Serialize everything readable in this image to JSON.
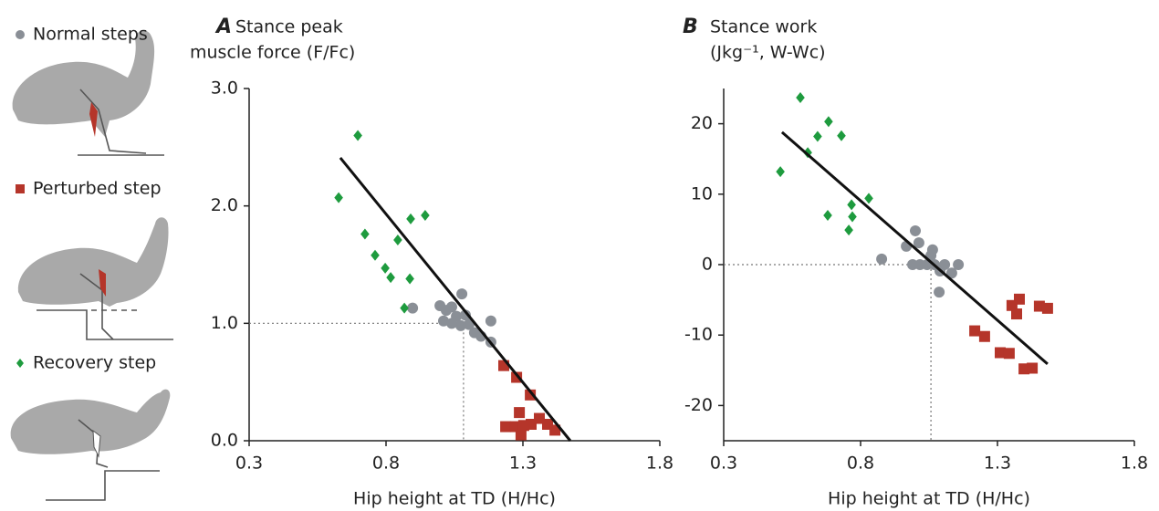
{
  "chart_data": [
    {
      "type": "scatter",
      "panel": "A",
      "title": [
        "Stance peak",
        "muscle force (F/Fc)"
      ],
      "xlabel": "Hip height at TD (H/Hc)",
      "xlim": [
        0.3,
        1.8
      ],
      "xticks": [
        0.3,
        0.8,
        1.3,
        1.8
      ],
      "ylim": [
        0,
        3
      ],
      "yticks": [
        {
          "value": 0,
          "label": "0.0"
        },
        {
          "value": 1,
          "label": "1.0"
        },
        {
          "value": 2,
          "label": "2.0"
        },
        {
          "value": 3,
          "label": "3.0"
        }
      ],
      "series": [
        {
          "name": "Normal steps",
          "color": "#8a8f96",
          "marker": "circle",
          "x": [
            0.897,
            0.997,
            1.02,
            1.04,
            1.077,
            1.01,
            1.057,
            1.09,
            1.103,
            1.123,
            1.147,
            1.183,
            1.183,
            1.073,
            1.04
          ],
          "values": [
            1.13,
            1.15,
            1.11,
            1.14,
            1.25,
            1.02,
            1.06,
            1.07,
            0.99,
            0.92,
            0.89,
            1.02,
            0.84,
            0.98,
            1.0
          ]
        },
        {
          "name": "Perturbed step",
          "color": "#b5352a",
          "marker": "square",
          "x": [
            1.23,
            1.277,
            1.237,
            1.273,
            1.287,
            1.327,
            1.303,
            1.33,
            1.293,
            1.36,
            1.39,
            1.417
          ],
          "values": [
            0.64,
            0.54,
            0.12,
            0.12,
            0.24,
            0.39,
            0.13,
            0.14,
            0.05,
            0.19,
            0.14,
            0.09
          ]
        },
        {
          "name": "Recovery step",
          "color": "#1e9b3e",
          "marker": "diamond",
          "x": [
            0.627,
            0.697,
            0.723,
            0.76,
            0.797,
            0.817,
            0.843,
            0.89,
            0.943,
            0.887,
            0.867
          ],
          "values": [
            2.07,
            2.6,
            1.76,
            1.58,
            1.47,
            1.39,
            1.71,
            1.89,
            1.92,
            1.38,
            1.13
          ]
        }
      ],
      "fit": {
        "x": [
          0.633,
          1.473
        ],
        "y": [
          2.41,
          0
        ]
      },
      "reference": {
        "x": 1.083,
        "y": 1.0
      }
    },
    {
      "type": "scatter",
      "panel": "B",
      "title": [
        "Stance work",
        "(Jkg⁻¹, W-Wc)"
      ],
      "xlabel": "Hip height at TD (H/Hc)",
      "xlim": [
        0.3,
        1.8
      ],
      "xticks": [
        0.3,
        0.8,
        1.3,
        1.8
      ],
      "ylim": [
        -25,
        25
      ],
      "yticks": [
        -20,
        -10,
        0,
        10,
        20
      ],
      "series": [
        {
          "color": "#8a8f96",
          "marker": "circle",
          "x": [
            0.877,
            0.967,
            1.0,
            1.013,
            0.99,
            1.017,
            1.043,
            1.057,
            1.07,
            1.09,
            1.107,
            1.087,
            1.133,
            1.157,
            1.063
          ],
          "values": [
            0.8,
            2.6,
            4.8,
            3.1,
            0,
            0,
            0,
            1.3,
            0,
            -0.9,
            0,
            -3.9,
            -1.2,
            0,
            2.1
          ]
        },
        {
          "color": "#b5352a",
          "marker": "square",
          "x": [
            1.217,
            1.253,
            1.31,
            1.343,
            1.353,
            1.38,
            1.37,
            1.397,
            1.427,
            1.453,
            1.483
          ],
          "values": [
            -9.4,
            -10.2,
            -12.5,
            -12.6,
            -5.8,
            -4.9,
            -7.0,
            -14.8,
            -14.7,
            -5.9,
            -6.2
          ]
        },
        {
          "color": "#1e9b3e",
          "marker": "diamond",
          "x": [
            0.507,
            0.58,
            0.607,
            0.643,
            0.683,
            0.73,
            0.68,
            0.757,
            0.77,
            0.767,
            0.83
          ],
          "values": [
            13.2,
            23.7,
            15.9,
            18.2,
            20.3,
            18.3,
            7.0,
            4.9,
            6.8,
            8.5,
            9.4
          ]
        }
      ],
      "fit": {
        "x": [
          0.513,
          1.483
        ],
        "y": [
          18.8,
          -14.1
        ]
      },
      "reference": {
        "x": 1.057,
        "y": 0
      }
    }
  ]
}
